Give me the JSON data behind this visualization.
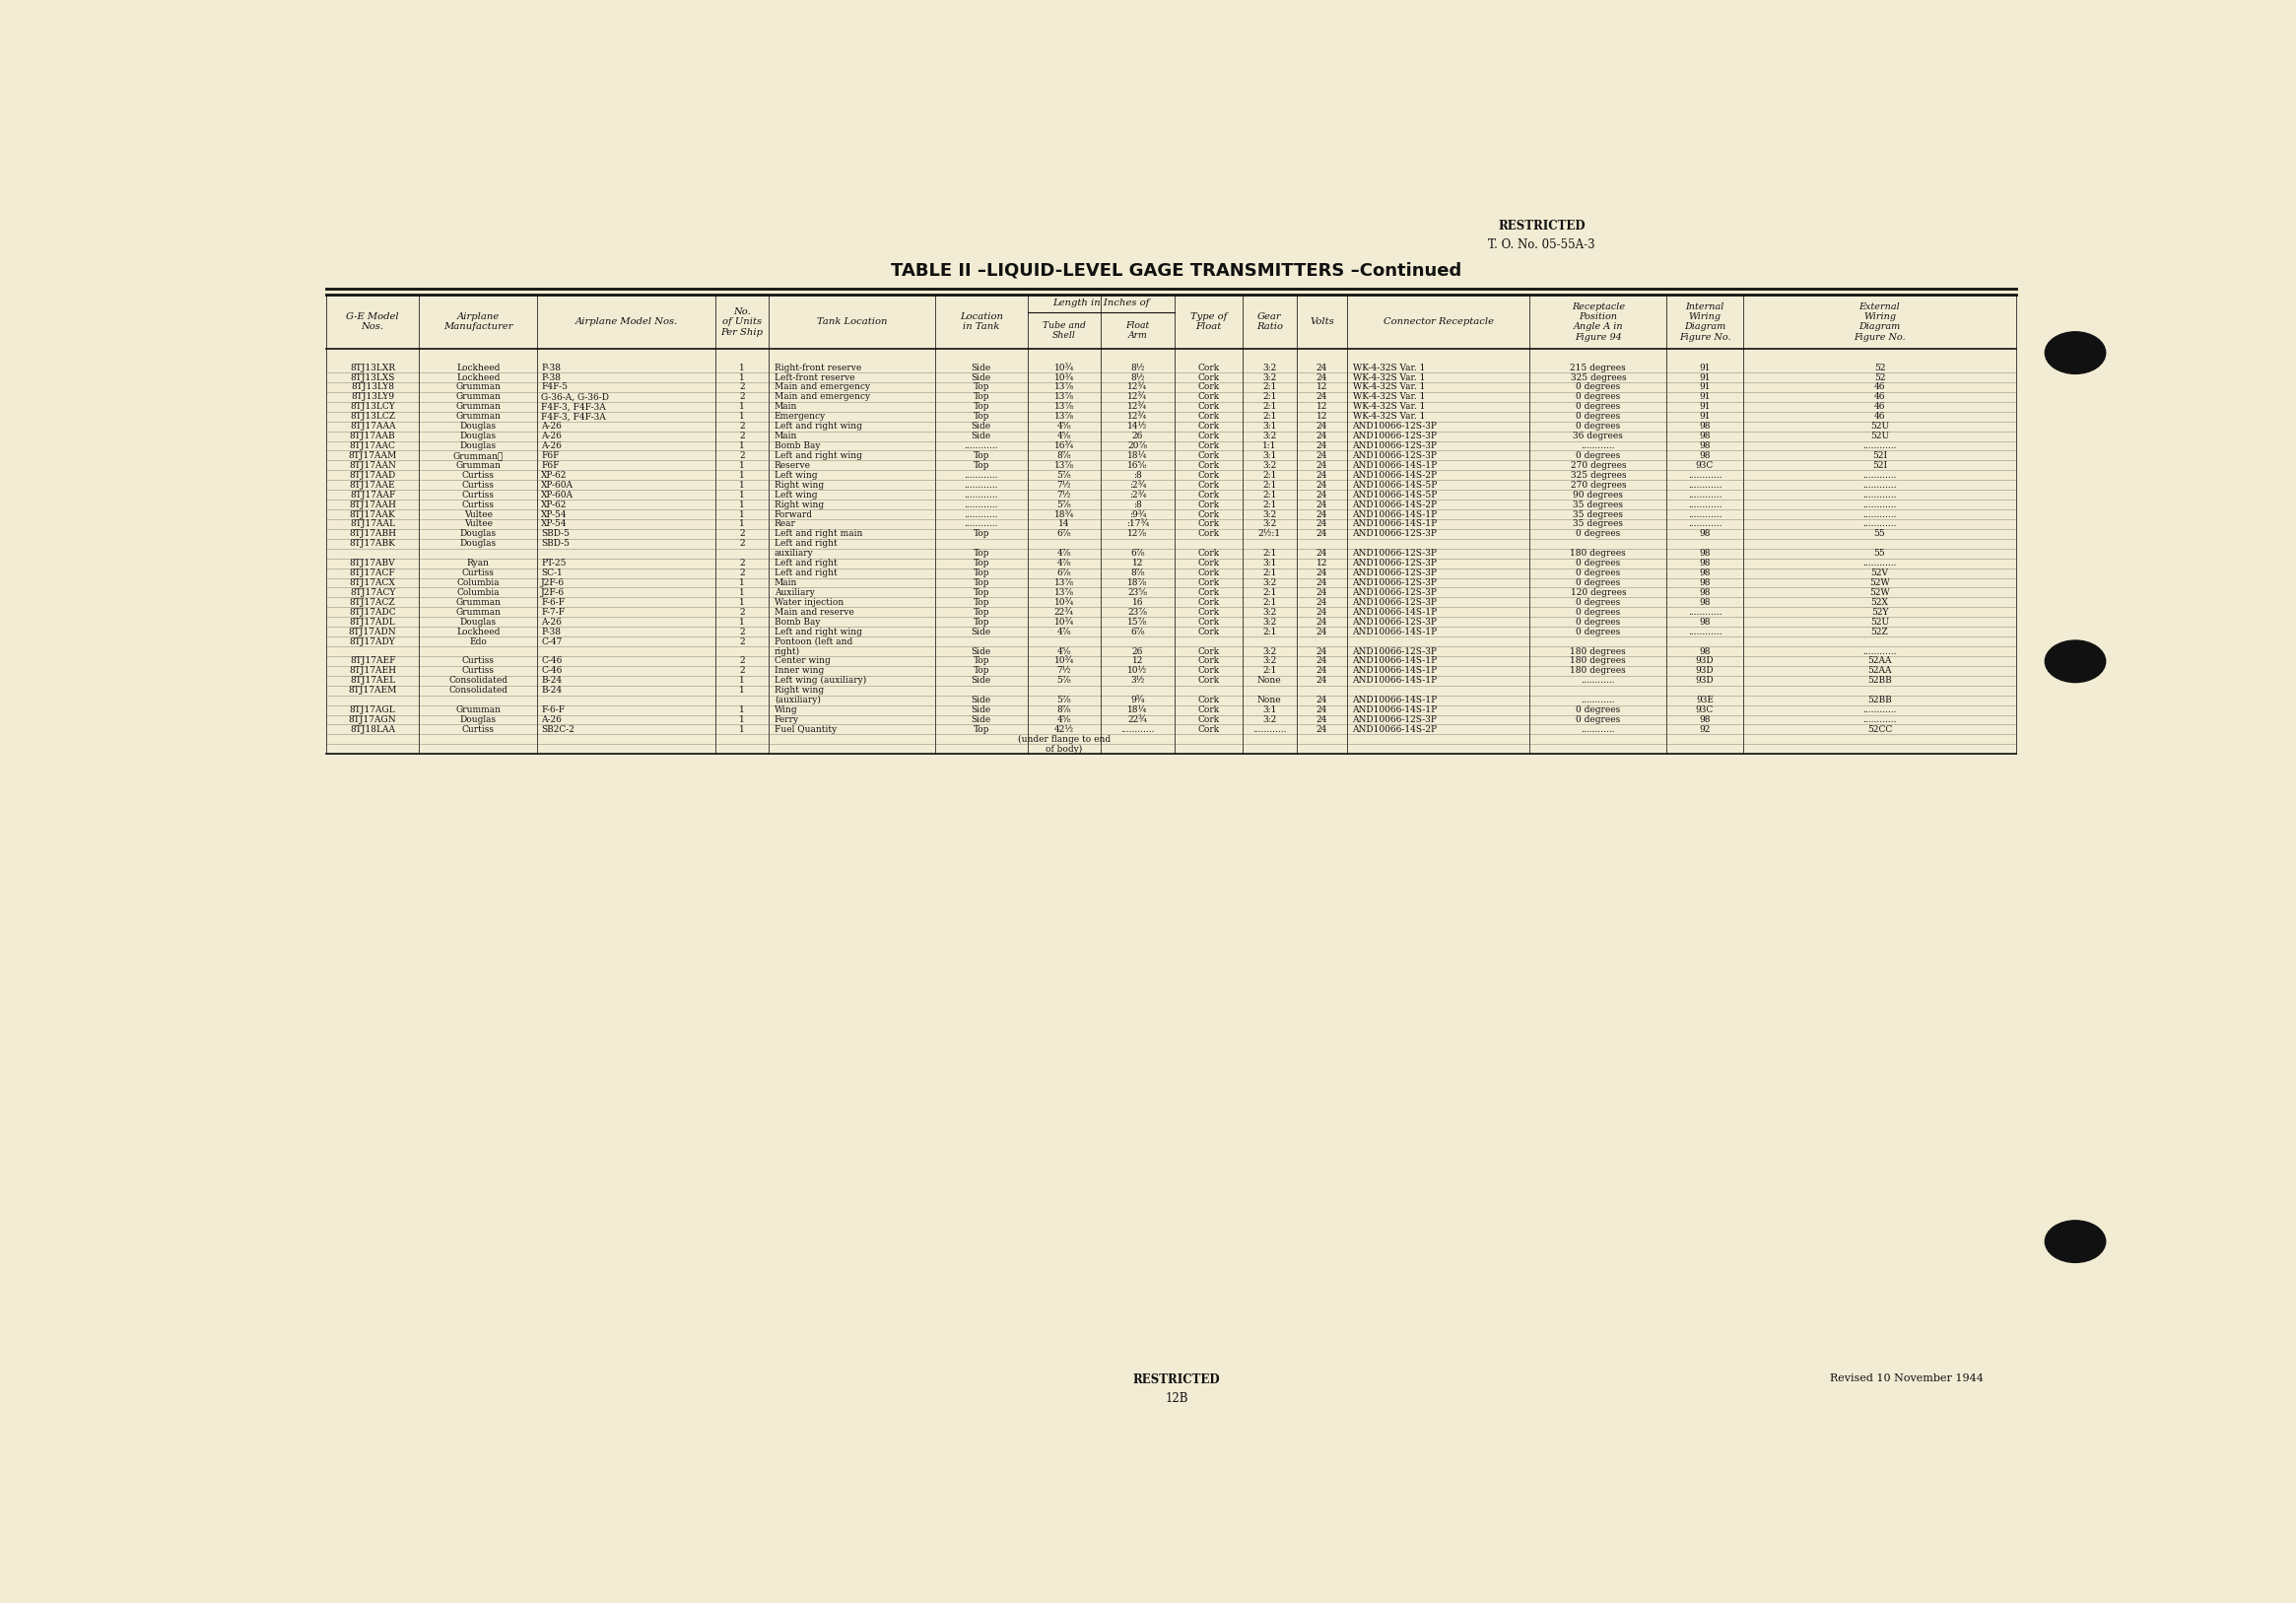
{
  "bg_color": "#f2ecd4",
  "title": "TABLE II –LIQUID-LEVEL GAGE TRANSMITTERS –Continued",
  "restricted_top": "RESTRICTED",
  "to_number": "T. O. No. 05-55A-3",
  "restricted_bottom": "RESTRICTED",
  "page_number": "12B",
  "revised": "Revised 10 November 1944",
  "rows": [
    [
      "8TJ13LXR",
      "Lockheed",
      "P-38",
      "1",
      "Right-front reserve",
      "Side",
      "10¾",
      "8½",
      "Cork",
      "3:2",
      "24",
      "WK-4-32S Var. 1",
      "215 degrees",
      "91",
      "52"
    ],
    [
      "8TJ13LXS",
      "Lockheed",
      "P-38",
      "1",
      "Left-front reserve",
      "Side",
      "10¾",
      "8½",
      "Cork",
      "3:2",
      "24",
      "WK-4-32S Var. 1",
      "325 degrees",
      "91",
      "52"
    ],
    [
      "8TJ13LY8",
      "Grumman",
      "F4F-5",
      "2",
      "Main and emergency",
      "Top",
      "13⅞",
      "12¾",
      "Cork",
      "2:1",
      "12",
      "WK-4-32S Var. 1",
      "0 degrees",
      "91",
      "46"
    ],
    [
      "8TJ13LY9",
      "Grumman",
      "G-36-A, G-36-D",
      "2",
      "Main and emergency",
      "Top",
      "13⅞",
      "12¾",
      "Cork",
      "2:1",
      "24",
      "WK-4-32S Var. 1",
      "0 degrees",
      "91",
      "46"
    ],
    [
      "8TJ13LCY",
      "Grumman",
      "F4F-3, F4F-3A",
      "1",
      "Main",
      "Top",
      "13⅞",
      "12¾",
      "Cork",
      "2:1",
      "12",
      "WK-4-32S Var. 1",
      "0 degrees",
      "91",
      "46"
    ],
    [
      "8TJ13LCZ",
      "Grumman",
      "F4F-3, F4F-3A",
      "1",
      "Emergency",
      "Top",
      "13⅞",
      "12¾",
      "Cork",
      "2:1",
      "12",
      "WK-4-32S Var. 1",
      "0 degrees",
      "91",
      "46"
    ],
    [
      "8TJ17AAA",
      "Douglas",
      "A-26",
      "2",
      "Left and right wing",
      "Side",
      "4⅝",
      "14½",
      "Cork",
      "3:1",
      "24",
      "AND10066-12S-3P",
      "0 degrees",
      "98",
      "52U"
    ],
    [
      "8TJ17AAB",
      "Douglas",
      "A-26",
      "2",
      "Main",
      "Side",
      "4⅝",
      "26",
      "Cork",
      "3:2",
      "24",
      "AND10066-12S-3P",
      "36 degrees",
      "98",
      "52U"
    ],
    [
      "8TJ17AAC",
      "Douglas",
      "A-26",
      "1",
      "Bomb Bay",
      "............",
      "16¾",
      "20⅞",
      "Cork",
      "1:1",
      "24",
      "AND10066-12S-3P",
      "............",
      "98",
      "............"
    ],
    [
      "8TJ17AAM",
      "Grumman★",
      "F6F",
      "2",
      "Left and right wing",
      "Top",
      "8⅞",
      "18¼",
      "Cork",
      "3:1",
      "24",
      "AND10066-12S-3P",
      "0 degrees",
      "98",
      "52I"
    ],
    [
      "8TJ17AAN",
      "Grumman",
      "F6F",
      "1",
      "Reserve",
      "Top",
      "13⅞",
      "16⅝",
      "Cork",
      "3:2",
      "24",
      "AND10066-14S-1P",
      "270 degrees",
      "93C",
      "52I"
    ],
    [
      "8TJ17AAD",
      "Curtiss",
      "XP-62",
      "1",
      "Left wing",
      "............",
      "5⅞",
      ":8",
      "Cork",
      "2:1",
      "24",
      "AND10066-14S-2P",
      "325 degrees",
      "............",
      "............"
    ],
    [
      "8TJ17AAE",
      "Curtiss",
      "XP-60A",
      "1",
      "Right wing",
      "............",
      "7½",
      ":2¾",
      "Cork",
      "2:1",
      "24",
      "AND10066-14S-5P",
      "270 degrees",
      "............",
      "............"
    ],
    [
      "8TJ17AAF",
      "Curtiss",
      "XP-60A",
      "1",
      "Left wing",
      "............",
      "7½",
      ":2¾",
      "Cork",
      "2:1",
      "24",
      "AND10066-14S-5P",
      "90 degrees",
      "............",
      "............"
    ],
    [
      "8TJ17AAH",
      "Curtiss",
      "XP-62",
      "1",
      "Right wing",
      "............",
      "5⅞",
      ":8",
      "Cork",
      "2:1",
      "24",
      "AND10066-14S-2P",
      "35 degrees",
      "............",
      "............"
    ],
    [
      "8TJ17AAK",
      "Vultee",
      "XP-54",
      "1",
      "Forward",
      "............",
      "18¾",
      ":9¾",
      "Cork",
      "3:2",
      "24",
      "AND10066-14S-1P",
      "35 degrees",
      "............",
      "............"
    ],
    [
      "8TJ17AAL",
      "Vultee",
      "XP-54",
      "1",
      "Rear",
      "............",
      "14",
      ":17¾",
      "Cork",
      "3:2",
      "24",
      "AND10066-14S-1P",
      "35 degrees",
      "............",
      "............"
    ],
    [
      "8TJ17ABH",
      "Douglas",
      "SBD-5",
      "2",
      "Left and right main",
      "Top",
      "6⅞",
      "12⅞",
      "Cork",
      "2½:1",
      "24",
      "AND10066-12S-3P",
      "0 degrees",
      "98",
      "55"
    ],
    [
      "8TJ17ABK",
      "Douglas",
      "SBD-5",
      "2",
      "Left and right",
      "",
      "",
      "",
      "",
      "",
      "",
      "",
      "",
      "",
      ""
    ],
    [
      "",
      "",
      "",
      "",
      "auxiliary",
      "Top",
      "4⅞",
      "6⅞",
      "Cork",
      "2:1",
      "24",
      "AND10066-12S-3P",
      "180 degrees",
      "98",
      "55"
    ],
    [
      "8TJ17ABV",
      "Ryan",
      "PT-25",
      "2",
      "Left and right",
      "Top",
      "4⅞",
      "12",
      "Cork",
      "3:1",
      "12",
      "AND10066-12S-3P",
      "0 degrees",
      "98",
      "............"
    ],
    [
      "8TJ17ACF",
      "Curtiss",
      "SC-1",
      "2",
      "Left and right",
      "Top",
      "6⅞",
      "8⅞",
      "Cork",
      "2:1",
      "24",
      "AND10066-12S-3P",
      "0 degrees",
      "98",
      "52V"
    ],
    [
      "8TJ17ACX",
      "Columbia",
      "J2F-6",
      "1",
      "Main",
      "Top",
      "13⅞",
      "18⅞",
      "Cork",
      "3:2",
      "24",
      "AND10066-12S-3P",
      "0 degrees",
      "98",
      "52W"
    ],
    [
      "8TJ17ACY",
      "Columbia",
      "J2F-6",
      "1",
      "Auxiliary",
      "Top",
      "13⅞",
      "23⅝",
      "Cork",
      "2:1",
      "24",
      "AND10066-12S-3P",
      "120 degrees",
      "98",
      "52W"
    ],
    [
      "8TJ17ACZ",
      "Grumman",
      "F-6-F",
      "1",
      "Water injection",
      "Top",
      "10¾",
      "16",
      "Cork",
      "2:1",
      "24",
      "AND10066-12S-3P",
      "0 degrees",
      "98",
      "52X"
    ],
    [
      "8TJ17ADC",
      "Grumman",
      "F-7-F",
      "2",
      "Main and reserve",
      "Top",
      "22¾",
      "23⅞",
      "Cork",
      "3:2",
      "24",
      "AND10066-14S-1P",
      "0 degrees",
      "............",
      "52Y"
    ],
    [
      "8TJ17ADL",
      "Douglas",
      "A-26",
      "1",
      "Bomb Bay",
      "Top",
      "10¾",
      "15⅞",
      "Cork",
      "3:2",
      "24",
      "AND10066-12S-3P",
      "0 degrees",
      "98",
      "52U"
    ],
    [
      "8TJ17ADN",
      "Lockheed",
      "P-38",
      "2",
      "Left and right wing",
      "Side",
      "4⅞",
      "6⅞",
      "Cork",
      "2:1",
      "24",
      "AND10066-14S-1P",
      "0 degrees",
      "............",
      "52Z"
    ],
    [
      "8TJ17ADY",
      "Edo",
      "C-47",
      "2",
      "Pontoon (left and",
      "",
      "",
      "",
      "",
      "",
      "",
      "",
      "",
      "",
      ""
    ],
    [
      "",
      "",
      "",
      "",
      "right)",
      "Side",
      "4⅝",
      "26",
      "Cork",
      "3:2",
      "24",
      "AND10066-12S-3P",
      "180 degrees",
      "98",
      "............"
    ],
    [
      "8TJ17AEF",
      "Curtiss",
      "C-46",
      "2",
      "Center wing",
      "Top",
      "10¾",
      "12",
      "Cork",
      "3:2",
      "24",
      "AND10066-14S-1P",
      "180 degrees",
      "93D",
      "52AA"
    ],
    [
      "8TJ17AEH",
      "Curtiss",
      "C-46",
      "2",
      "Inner wing",
      "Top",
      "7½",
      "10½",
      "Cork",
      "2:1",
      "24",
      "AND10066-14S-1P",
      "180 degrees",
      "93D",
      "52AA"
    ],
    [
      "8TJ17AEL",
      "Consolidated",
      "B-24",
      "1",
      "Left wing (auxiliary)",
      "Side",
      "5⅞",
      "3½",
      "Cork",
      "None",
      "24",
      "AND10066-14S-1P",
      "............",
      "93D",
      "52BB"
    ],
    [
      "8TJ17AEM",
      "Consolidated",
      "B-24",
      "1",
      "Right wing",
      "",
      "",
      "",
      "",
      "",
      "",
      "",
      "",
      "",
      ""
    ],
    [
      "",
      "",
      "",
      "",
      "(auxiliary)",
      "Side",
      "5⅞",
      "9¾",
      "Cork",
      "None",
      "24",
      "AND10066-14S-1P",
      "............",
      "93E",
      "52BB"
    ],
    [
      "8TJ17AGL",
      "Grumman",
      "F-6-F",
      "1",
      "Wing",
      "Side",
      "8⅞",
      "18¼",
      "Cork",
      "3:1",
      "24",
      "AND10066-14S-1P",
      "0 degrees",
      "93C",
      "............"
    ],
    [
      "8TJ17AGN",
      "Douglas",
      "A-26",
      "1",
      "Ferry",
      "Side",
      "4⅝",
      "22¾",
      "Cork",
      "3:2",
      "24",
      "AND10066-12S-3P",
      "0 degrees",
      "98",
      "............"
    ],
    [
      "8TJ18LAA",
      "Curtiss",
      "SB2C-2",
      "1",
      "Fuel Quantity",
      "Top",
      "42½",
      "............",
      "Cork",
      "............",
      "24",
      "AND10066-14S-2P",
      "............",
      "92",
      "52CC"
    ],
    [
      "",
      "",
      "",
      "",
      "",
      "",
      "(under flange to end",
      "",
      "",
      "",
      "",
      "",
      "",
      "",
      ""
    ],
    [
      "",
      "",
      "",
      "",
      "",
      "",
      "of body)",
      "",
      "",
      "",
      "",
      "",
      "",
      "",
      ""
    ]
  ]
}
